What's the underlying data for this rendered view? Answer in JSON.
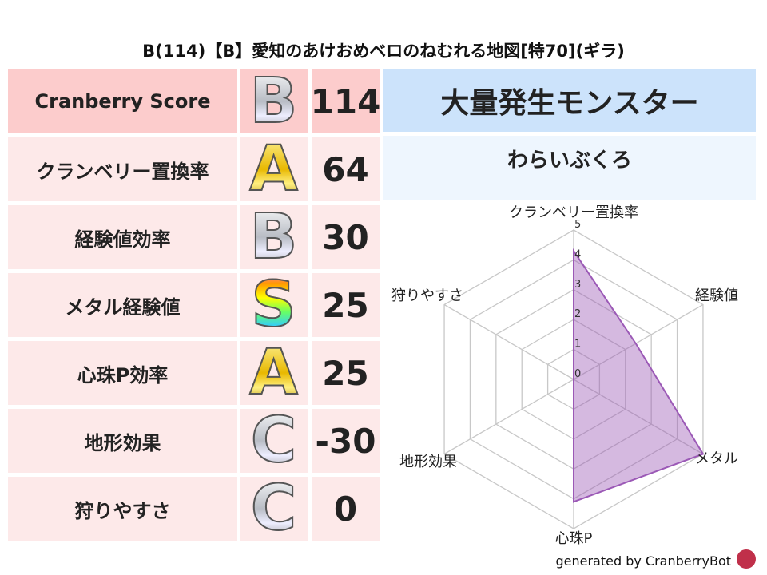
{
  "title": "B(114)【B】愛知のあけおめベロのねむれる地図[特70](ギラ)",
  "rows": [
    {
      "label": "Cranberry Score",
      "grade": "B",
      "score": "114"
    },
    {
      "label": "クランベリー置換率",
      "grade": "A",
      "score": "64"
    },
    {
      "label": "経験値効率",
      "grade": "B",
      "score": "30"
    },
    {
      "label": "メタル経験値",
      "grade": "S",
      "score": "25"
    },
    {
      "label": "心珠P効率",
      "grade": "A",
      "score": "25"
    },
    {
      "label": "地形効果",
      "grade": "C",
      "score": "-30"
    },
    {
      "label": "狩りやすさ",
      "grade": "C",
      "score": "0"
    }
  ],
  "monster": {
    "header": "大量発生モンスター",
    "name": "わらいぶくろ"
  },
  "chart_data": {
    "type": "radar",
    "axes": [
      "クランベリー置換率",
      "経験値",
      "メタル",
      "心珠P",
      "地形効果",
      "狩りやすさ"
    ],
    "values": [
      4.3,
      2.4,
      5,
      4.1,
      0,
      0
    ],
    "range": [
      0,
      5
    ],
    "ticks": [
      "0",
      "1",
      "2",
      "3",
      "4",
      "5"
    ],
    "color": "#9b59b6"
  },
  "footer": "generated by CranberryBot"
}
